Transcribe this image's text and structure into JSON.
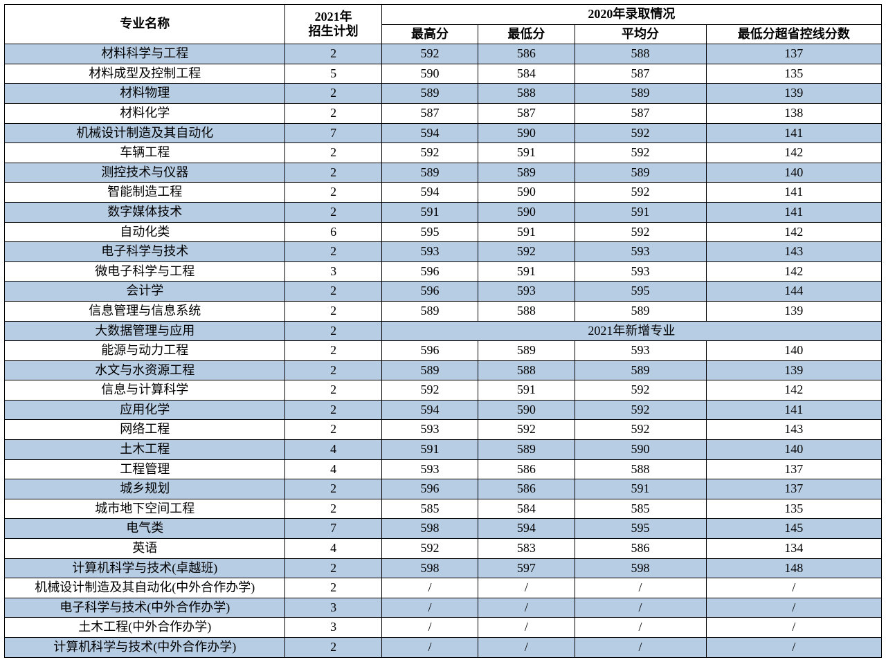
{
  "colors": {
    "row_blue": "#b7cde4",
    "row_white": "#ffffff",
    "border": "#000000",
    "header_bg": "#ffffff"
  },
  "typography": {
    "font_family": "SimSun",
    "header_weight": "bold",
    "cell_fontsize_pt": 14
  },
  "header": {
    "name": "专业名称",
    "plan": "2021年\n招生计划",
    "plan_line1": "2021年",
    "plan_line2": "招生计划",
    "group2020": "2020年录取情况",
    "max": "最高分",
    "min": "最低分",
    "avg": "平均分",
    "gap": "最低分超省控线分数"
  },
  "merged_note": "2021年新增专业",
  "columns": [
    "专业名称",
    "2021年招生计划",
    "最高分",
    "最低分",
    "平均分",
    "最低分超省控线分数"
  ],
  "column_widths_pct": [
    32,
    11,
    11,
    11,
    15,
    20
  ],
  "row_stripe_start": "blue",
  "rows": [
    {
      "name": "材料科学与工程",
      "plan": "2",
      "max": "592",
      "min": "586",
      "avg": "588",
      "gap": "137",
      "merged": false
    },
    {
      "name": "材料成型及控制工程",
      "plan": "5",
      "max": "590",
      "min": "584",
      "avg": "587",
      "gap": "135",
      "merged": false
    },
    {
      "name": "材料物理",
      "plan": "2",
      "max": "589",
      "min": "588",
      "avg": "589",
      "gap": "139",
      "merged": false
    },
    {
      "name": "材料化学",
      "plan": "2",
      "max": "587",
      "min": "587",
      "avg": "587",
      "gap": "138",
      "merged": false
    },
    {
      "name": "机械设计制造及其自动化",
      "plan": "7",
      "max": "594",
      "min": "590",
      "avg": "592",
      "gap": "141",
      "merged": false
    },
    {
      "name": "车辆工程",
      "plan": "2",
      "max": "592",
      "min": "591",
      "avg": "592",
      "gap": "142",
      "merged": false
    },
    {
      "name": "测控技术与仪器",
      "plan": "2",
      "max": "589",
      "min": "589",
      "avg": "589",
      "gap": "140",
      "merged": false
    },
    {
      "name": "智能制造工程",
      "plan": "2",
      "max": "594",
      "min": "590",
      "avg": "592",
      "gap": "141",
      "merged": false
    },
    {
      "name": "数字媒体技术",
      "plan": "2",
      "max": "591",
      "min": "590",
      "avg": "591",
      "gap": "141",
      "merged": false
    },
    {
      "name": "自动化类",
      "plan": "6",
      "max": "595",
      "min": "591",
      "avg": "592",
      "gap": "142",
      "merged": false
    },
    {
      "name": "电子科学与技术",
      "plan": "2",
      "max": "593",
      "min": "592",
      "avg": "593",
      "gap": "143",
      "merged": false
    },
    {
      "name": "微电子科学与工程",
      "plan": "3",
      "max": "596",
      "min": "591",
      "avg": "593",
      "gap": "142",
      "merged": false
    },
    {
      "name": "会计学",
      "plan": "2",
      "max": "596",
      "min": "593",
      "avg": "595",
      "gap": "144",
      "merged": false
    },
    {
      "name": "信息管理与信息系统",
      "plan": "2",
      "max": "589",
      "min": "588",
      "avg": "589",
      "gap": "139",
      "merged": false
    },
    {
      "name": "大数据管理与应用",
      "plan": "2",
      "merged": true
    },
    {
      "name": "能源与动力工程",
      "plan": "2",
      "max": "596",
      "min": "589",
      "avg": "593",
      "gap": "140",
      "merged": false
    },
    {
      "name": "水文与水资源工程",
      "plan": "2",
      "max": "589",
      "min": "588",
      "avg": "589",
      "gap": "139",
      "merged": false
    },
    {
      "name": "信息与计算科学",
      "plan": "2",
      "max": "592",
      "min": "591",
      "avg": "592",
      "gap": "142",
      "merged": false
    },
    {
      "name": "应用化学",
      "plan": "2",
      "max": "594",
      "min": "590",
      "avg": "592",
      "gap": "141",
      "merged": false
    },
    {
      "name": "网络工程",
      "plan": "2",
      "max": "593",
      "min": "592",
      "avg": "592",
      "gap": "143",
      "merged": false
    },
    {
      "name": "土木工程",
      "plan": "4",
      "max": "591",
      "min": "589",
      "avg": "590",
      "gap": "140",
      "merged": false
    },
    {
      "name": "工程管理",
      "plan": "4",
      "max": "593",
      "min": "586",
      "avg": "588",
      "gap": "137",
      "merged": false
    },
    {
      "name": "城乡规划",
      "plan": "2",
      "max": "596",
      "min": "586",
      "avg": "591",
      "gap": "137",
      "merged": false
    },
    {
      "name": "城市地下空间工程",
      "plan": "2",
      "max": "585",
      "min": "584",
      "avg": "585",
      "gap": "135",
      "merged": false
    },
    {
      "name": "电气类",
      "plan": "7",
      "max": "598",
      "min": "594",
      "avg": "595",
      "gap": "145",
      "merged": false
    },
    {
      "name": "英语",
      "plan": "4",
      "max": "592",
      "min": "583",
      "avg": "586",
      "gap": "134",
      "merged": false
    },
    {
      "name": "计算机科学与技术(卓越班)",
      "plan": "2",
      "max": "598",
      "min": "597",
      "avg": "598",
      "gap": "148",
      "merged": false
    },
    {
      "name": "机械设计制造及其自动化(中外合作办学)",
      "plan": "2",
      "max": "/",
      "min": "/",
      "avg": "/",
      "gap": "/",
      "merged": false
    },
    {
      "name": "电子科学与技术(中外合作办学)",
      "plan": "3",
      "max": "/",
      "min": "/",
      "avg": "/",
      "gap": "/",
      "merged": false
    },
    {
      "name": "土木工程(中外合作办学)",
      "plan": "3",
      "max": "/",
      "min": "/",
      "avg": "/",
      "gap": "/",
      "merged": false
    },
    {
      "name": "计算机科学与技术(中外合作办学)",
      "plan": "2",
      "max": "/",
      "min": "/",
      "avg": "/",
      "gap": "/",
      "merged": false
    }
  ]
}
